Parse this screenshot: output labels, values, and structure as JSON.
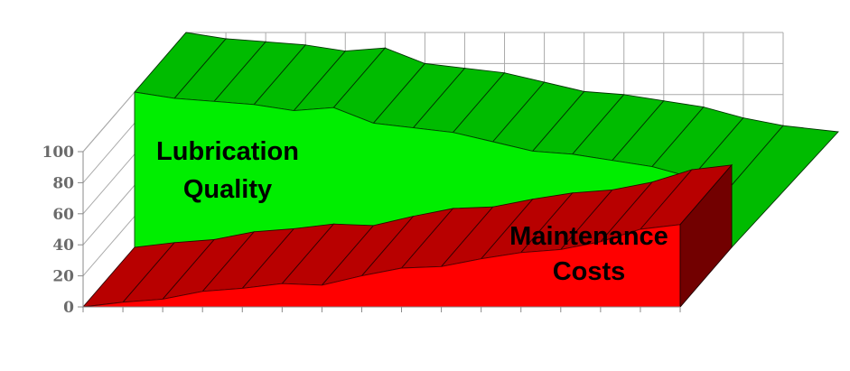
{
  "chart_data": {
    "type": "area",
    "title": "",
    "xlabel": "",
    "ylabel": "",
    "ylim": [
      0,
      100
    ],
    "yticks": [
      0,
      20,
      40,
      60,
      80,
      100
    ],
    "grid": true,
    "three_d": true,
    "x": [
      0,
      1,
      2,
      3,
      4,
      5,
      6,
      7,
      8,
      9,
      10,
      11,
      12,
      13,
      14,
      15
    ],
    "series": [
      {
        "name": "Lubrication Quality",
        "color": "#00ee00",
        "values": [
          100,
          96,
          94,
          92,
          88,
          90,
          80,
          77,
          74,
          68,
          62,
          60,
          56,
          52,
          45,
          40
        ]
      },
      {
        "name": "Maintenance Costs",
        "color": "#ff0000",
        "values": [
          0,
          3,
          5,
          10,
          12,
          15,
          14,
          20,
          25,
          26,
          31,
          35,
          37,
          42,
          50,
          53
        ]
      }
    ],
    "labels": [
      {
        "lines": [
          "Lubrication",
          "Quality"
        ],
        "series": "Lubrication Quality"
      },
      {
        "lines": [
          "Maintenance",
          "Costs"
        ],
        "series": "Maintenance Costs"
      }
    ],
    "colors": {
      "front_green": "#00ee00",
      "top_green": "#00bb00",
      "front_red": "#ff0000",
      "top_red": "#b80000",
      "side_red": "#720000",
      "grid": "#aaaaaa",
      "tick_text": "#6a6a6a"
    }
  }
}
